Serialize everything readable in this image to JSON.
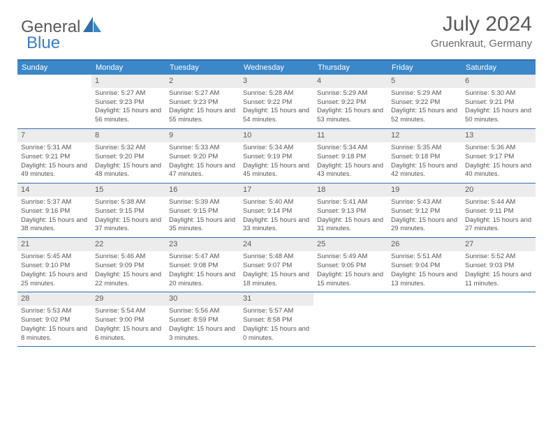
{
  "logo": {
    "text1": "General",
    "text2": "Blue"
  },
  "title": "July 2024",
  "location": "Gruenkraut, Germany",
  "colors": {
    "header_bar": "#3b87c8",
    "border": "#2f6fa8",
    "daynum_bg": "#ececec",
    "text": "#555555",
    "logo_blue": "#3b7fc4"
  },
  "dow": [
    "Sunday",
    "Monday",
    "Tuesday",
    "Wednesday",
    "Thursday",
    "Friday",
    "Saturday"
  ],
  "weeks": [
    [
      {
        "n": "",
        "sr": "",
        "ss": "",
        "dl": ""
      },
      {
        "n": "1",
        "sr": "Sunrise: 5:27 AM",
        "ss": "Sunset: 9:23 PM",
        "dl": "Daylight: 15 hours and 56 minutes."
      },
      {
        "n": "2",
        "sr": "Sunrise: 5:27 AM",
        "ss": "Sunset: 9:23 PM",
        "dl": "Daylight: 15 hours and 55 minutes."
      },
      {
        "n": "3",
        "sr": "Sunrise: 5:28 AM",
        "ss": "Sunset: 9:22 PM",
        "dl": "Daylight: 15 hours and 54 minutes."
      },
      {
        "n": "4",
        "sr": "Sunrise: 5:29 AM",
        "ss": "Sunset: 9:22 PM",
        "dl": "Daylight: 15 hours and 53 minutes."
      },
      {
        "n": "5",
        "sr": "Sunrise: 5:29 AM",
        "ss": "Sunset: 9:22 PM",
        "dl": "Daylight: 15 hours and 52 minutes."
      },
      {
        "n": "6",
        "sr": "Sunrise: 5:30 AM",
        "ss": "Sunset: 9:21 PM",
        "dl": "Daylight: 15 hours and 50 minutes."
      }
    ],
    [
      {
        "n": "7",
        "sr": "Sunrise: 5:31 AM",
        "ss": "Sunset: 9:21 PM",
        "dl": "Daylight: 15 hours and 49 minutes."
      },
      {
        "n": "8",
        "sr": "Sunrise: 5:32 AM",
        "ss": "Sunset: 9:20 PM",
        "dl": "Daylight: 15 hours and 48 minutes."
      },
      {
        "n": "9",
        "sr": "Sunrise: 5:33 AM",
        "ss": "Sunset: 9:20 PM",
        "dl": "Daylight: 15 hours and 47 minutes."
      },
      {
        "n": "10",
        "sr": "Sunrise: 5:34 AM",
        "ss": "Sunset: 9:19 PM",
        "dl": "Daylight: 15 hours and 45 minutes."
      },
      {
        "n": "11",
        "sr": "Sunrise: 5:34 AM",
        "ss": "Sunset: 9:18 PM",
        "dl": "Daylight: 15 hours and 43 minutes."
      },
      {
        "n": "12",
        "sr": "Sunrise: 5:35 AM",
        "ss": "Sunset: 9:18 PM",
        "dl": "Daylight: 15 hours and 42 minutes."
      },
      {
        "n": "13",
        "sr": "Sunrise: 5:36 AM",
        "ss": "Sunset: 9:17 PM",
        "dl": "Daylight: 15 hours and 40 minutes."
      }
    ],
    [
      {
        "n": "14",
        "sr": "Sunrise: 5:37 AM",
        "ss": "Sunset: 9:16 PM",
        "dl": "Daylight: 15 hours and 38 minutes."
      },
      {
        "n": "15",
        "sr": "Sunrise: 5:38 AM",
        "ss": "Sunset: 9:15 PM",
        "dl": "Daylight: 15 hours and 37 minutes."
      },
      {
        "n": "16",
        "sr": "Sunrise: 5:39 AM",
        "ss": "Sunset: 9:15 PM",
        "dl": "Daylight: 15 hours and 35 minutes."
      },
      {
        "n": "17",
        "sr": "Sunrise: 5:40 AM",
        "ss": "Sunset: 9:14 PM",
        "dl": "Daylight: 15 hours and 33 minutes."
      },
      {
        "n": "18",
        "sr": "Sunrise: 5:41 AM",
        "ss": "Sunset: 9:13 PM",
        "dl": "Daylight: 15 hours and 31 minutes."
      },
      {
        "n": "19",
        "sr": "Sunrise: 5:43 AM",
        "ss": "Sunset: 9:12 PM",
        "dl": "Daylight: 15 hours and 29 minutes."
      },
      {
        "n": "20",
        "sr": "Sunrise: 5:44 AM",
        "ss": "Sunset: 9:11 PM",
        "dl": "Daylight: 15 hours and 27 minutes."
      }
    ],
    [
      {
        "n": "21",
        "sr": "Sunrise: 5:45 AM",
        "ss": "Sunset: 9:10 PM",
        "dl": "Daylight: 15 hours and 25 minutes."
      },
      {
        "n": "22",
        "sr": "Sunrise: 5:46 AM",
        "ss": "Sunset: 9:09 PM",
        "dl": "Daylight: 15 hours and 22 minutes."
      },
      {
        "n": "23",
        "sr": "Sunrise: 5:47 AM",
        "ss": "Sunset: 9:08 PM",
        "dl": "Daylight: 15 hours and 20 minutes."
      },
      {
        "n": "24",
        "sr": "Sunrise: 5:48 AM",
        "ss": "Sunset: 9:07 PM",
        "dl": "Daylight: 15 hours and 18 minutes."
      },
      {
        "n": "25",
        "sr": "Sunrise: 5:49 AM",
        "ss": "Sunset: 9:05 PM",
        "dl": "Daylight: 15 hours and 15 minutes."
      },
      {
        "n": "26",
        "sr": "Sunrise: 5:51 AM",
        "ss": "Sunset: 9:04 PM",
        "dl": "Daylight: 15 hours and 13 minutes."
      },
      {
        "n": "27",
        "sr": "Sunrise: 5:52 AM",
        "ss": "Sunset: 9:03 PM",
        "dl": "Daylight: 15 hours and 11 minutes."
      }
    ],
    [
      {
        "n": "28",
        "sr": "Sunrise: 5:53 AM",
        "ss": "Sunset: 9:02 PM",
        "dl": "Daylight: 15 hours and 8 minutes."
      },
      {
        "n": "29",
        "sr": "Sunrise: 5:54 AM",
        "ss": "Sunset: 9:00 PM",
        "dl": "Daylight: 15 hours and 6 minutes."
      },
      {
        "n": "30",
        "sr": "Sunrise: 5:56 AM",
        "ss": "Sunset: 8:59 PM",
        "dl": "Daylight: 15 hours and 3 minutes."
      },
      {
        "n": "31",
        "sr": "Sunrise: 5:57 AM",
        "ss": "Sunset: 8:58 PM",
        "dl": "Daylight: 15 hours and 0 minutes."
      },
      {
        "n": "",
        "sr": "",
        "ss": "",
        "dl": ""
      },
      {
        "n": "",
        "sr": "",
        "ss": "",
        "dl": ""
      },
      {
        "n": "",
        "sr": "",
        "ss": "",
        "dl": ""
      }
    ]
  ]
}
